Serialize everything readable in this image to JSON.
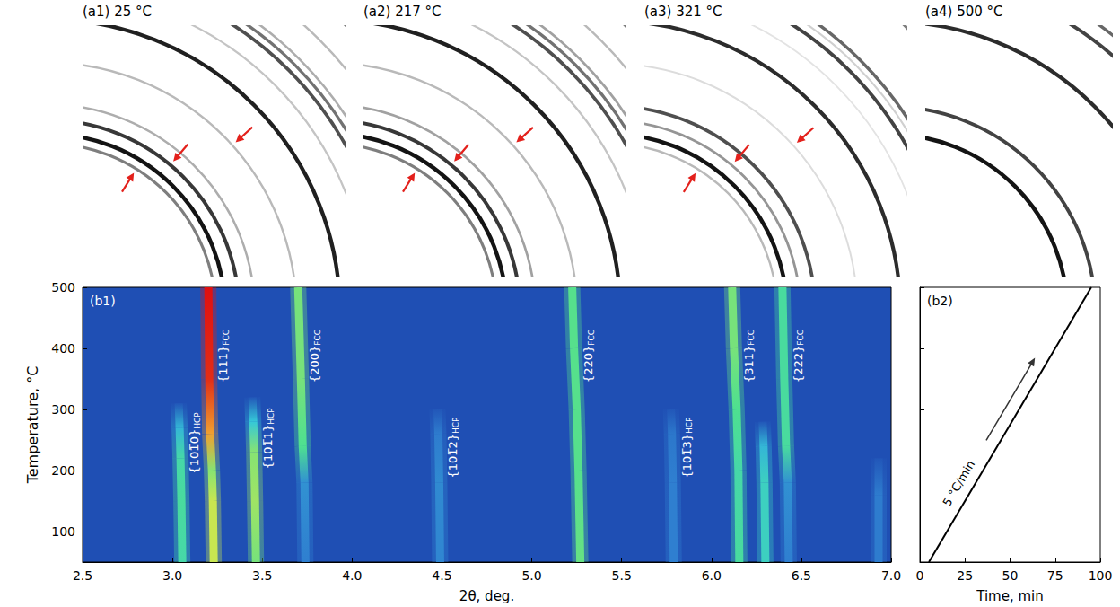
{
  "images": [
    {
      "title": "(a1) 25 °C",
      "rings": [
        {
          "two_theta": 3.04,
          "intensity": 0.55
        },
        {
          "two_theta": 3.21,
          "intensity": 1.0
        },
        {
          "two_theta": 3.46,
          "intensity": 0.85
        },
        {
          "two_theta": 3.74,
          "intensity": 0.35
        },
        {
          "two_theta": 4.49,
          "intensity": 0.3
        },
        {
          "two_theta": 5.27,
          "intensity": 0.95
        },
        {
          "two_theta": 5.79,
          "intensity": 0.25
        },
        {
          "two_theta": 6.155,
          "intensity": 0.75
        },
        {
          "two_theta": 6.3,
          "intensity": 0.6
        },
        {
          "two_theta": 6.43,
          "intensity": 0.35
        },
        {
          "two_theta": 6.93,
          "intensity": 0.3
        },
        {
          "two_theta": 7.45,
          "intensity": 0.55
        }
      ],
      "arrows": [
        3.04,
        3.46,
        4.49
      ]
    },
    {
      "title": "(a2) 217 °C",
      "rings": [
        {
          "two_theta": 3.04,
          "intensity": 0.55
        },
        {
          "two_theta": 3.22,
          "intensity": 1.0
        },
        {
          "two_theta": 3.46,
          "intensity": 0.85
        },
        {
          "two_theta": 3.735,
          "intensity": 0.4
        },
        {
          "two_theta": 4.485,
          "intensity": 0.3
        },
        {
          "two_theta": 5.26,
          "intensity": 0.95
        },
        {
          "two_theta": 5.785,
          "intensity": 0.25
        },
        {
          "two_theta": 6.15,
          "intensity": 0.75
        },
        {
          "two_theta": 6.295,
          "intensity": 0.6
        },
        {
          "two_theta": 6.425,
          "intensity": 0.4
        },
        {
          "two_theta": 6.93,
          "intensity": 0.3
        },
        {
          "two_theta": 7.43,
          "intensity": 0.55
        }
      ],
      "arrows": [
        3.04,
        3.46,
        4.485
      ]
    },
    {
      "title": "(a3) 321 °C",
      "rings": [
        {
          "two_theta": 3.035,
          "intensity": 0.3
        },
        {
          "two_theta": 3.21,
          "intensity": 1.0
        },
        {
          "two_theta": 3.45,
          "intensity": 0.45
        },
        {
          "two_theta": 3.715,
          "intensity": 0.75
        },
        {
          "two_theta": 4.475,
          "intensity": 0.15
        },
        {
          "two_theta": 5.245,
          "intensity": 0.9
        },
        {
          "two_theta": 5.775,
          "intensity": 0.12
        },
        {
          "two_theta": 6.135,
          "intensity": 0.8
        },
        {
          "two_theta": 6.285,
          "intensity": 0.2
        },
        {
          "two_theta": 6.405,
          "intensity": 0.65
        },
        {
          "two_theta": 7.41,
          "intensity": 0.55
        }
      ],
      "arrows": [
        3.035,
        3.45,
        4.475
      ]
    },
    {
      "title": "(a4) 500 °C",
      "rings": [
        {
          "two_theta": 3.2,
          "intensity": 1.0
        },
        {
          "two_theta": 3.7,
          "intensity": 0.8
        },
        {
          "two_theta": 5.225,
          "intensity": 0.9
        },
        {
          "two_theta": 6.115,
          "intensity": 0.8
        },
        {
          "two_theta": 6.395,
          "intensity": 0.65
        },
        {
          "two_theta": 7.39,
          "intensity": 0.55
        }
      ],
      "arrows": []
    }
  ],
  "chart_data": [
    {
      "type": "heatmap",
      "panel": "(b1)",
      "xlabel": "2θ, deg.",
      "ylabel": "Temperature, °C",
      "xlim": [
        2.5,
        7.0
      ],
      "ylim": [
        50,
        500
      ],
      "xticks": [
        2.5,
        {
          "value": 3,
          "label": "3.0"
        },
        3.5,
        {
          "value": 4,
          "label": "4.0"
        },
        4.5,
        {
          "value": 5,
          "label": "5.0"
        },
        5.5,
        {
          "value": 6,
          "label": "6.0"
        },
        6.5,
        {
          "value": 7,
          "label": "7.0"
        }
      ],
      "yticks": [
        100,
        200,
        300,
        400,
        500
      ],
      "intensity_range": [
        0,
        1
      ],
      "grid": false,
      "series": [
        {
          "name": "{101̅0}",
          "phase": "HCP",
          "values": [
            [
              3.055,
              50
            ],
            [
              3.05,
              150
            ],
            [
              3.045,
              220
            ],
            [
              3.04,
              270
            ],
            [
              3.035,
              310
            ]
          ],
          "intensity": [
            0.6,
            0.62,
            0.6,
            0.45,
            0.05
          ]
        },
        {
          "name": "{111}",
          "phase": "FCC",
          "values": [
            [
              3.23,
              50
            ],
            [
              3.225,
              150
            ],
            [
              3.22,
              200
            ],
            [
              3.21,
              260
            ],
            [
              3.205,
              350
            ],
            [
              3.2,
              500
            ]
          ],
          "intensity": [
            0.8,
            0.8,
            0.72,
            0.9,
            0.98,
            1.0
          ]
        },
        {
          "name": "{101̅1}",
          "phase": "HCP",
          "values": [
            [
              3.465,
              50
            ],
            [
              3.46,
              150
            ],
            [
              3.455,
              230
            ],
            [
              3.45,
              280
            ],
            [
              3.445,
              320
            ]
          ],
          "intensity": [
            0.7,
            0.75,
            0.72,
            0.5,
            0.05
          ]
        },
        {
          "name": "{200}",
          "phase": "FCC",
          "values": [
            [
              3.74,
              50
            ],
            [
              3.735,
              180
            ],
            [
              3.725,
              240
            ],
            [
              3.715,
              350
            ],
            [
              3.7,
              500
            ]
          ],
          "intensity": [
            0.3,
            0.35,
            0.65,
            0.7,
            0.7
          ]
        },
        {
          "name": "{101̅2}",
          "phase": "HCP",
          "values": [
            [
              4.49,
              50
            ],
            [
              4.485,
              180
            ],
            [
              4.48,
              260
            ],
            [
              4.475,
              300
            ]
          ],
          "intensity": [
            0.32,
            0.33,
            0.28,
            0.05
          ]
        },
        {
          "name": "{220}",
          "phase": "FCC",
          "values": [
            [
              5.27,
              50
            ],
            [
              5.26,
              200
            ],
            [
              5.25,
              300
            ],
            [
              5.235,
              400
            ],
            [
              5.225,
              500
            ]
          ],
          "intensity": [
            0.68,
            0.66,
            0.66,
            0.66,
            0.66
          ]
        },
        {
          "name": "{101̅3}",
          "phase": "HCP",
          "values": [
            [
              5.79,
              50
            ],
            [
              5.785,
              180
            ],
            [
              5.78,
              260
            ],
            [
              5.775,
              300
            ]
          ],
          "intensity": [
            0.3,
            0.3,
            0.25,
            0.05
          ]
        },
        {
          "name": "{311}",
          "phase": "FCC",
          "values": [
            [
              6.155,
              50
            ],
            [
              6.15,
              200
            ],
            [
              6.14,
              300
            ],
            [
              6.125,
              400
            ],
            [
              6.115,
              500
            ]
          ],
          "intensity": [
            0.62,
            0.6,
            0.65,
            0.7,
            0.7
          ]
        },
        {
          "values": [
            [
              6.3,
              50
            ],
            [
              6.295,
              180
            ],
            [
              6.29,
              240
            ],
            [
              6.285,
              280
            ]
          ],
          "intensity": [
            0.55,
            0.55,
            0.45,
            0.05
          ]
        },
        {
          "name": "{222}",
          "phase": "FCC",
          "values": [
            [
              6.43,
              50
            ],
            [
              6.425,
              180
            ],
            [
              6.415,
              240
            ],
            [
              6.405,
              350
            ],
            [
              6.395,
              500
            ]
          ],
          "intensity": [
            0.3,
            0.35,
            0.62,
            0.62,
            0.62
          ]
        },
        {
          "values": [
            [
              6.93,
              50
            ],
            [
              6.93,
              160
            ],
            [
              6.93,
              220
            ]
          ],
          "intensity": [
            0.28,
            0.28,
            0.05
          ]
        }
      ]
    },
    {
      "type": "line",
      "panel": "(b2)",
      "xlabel": "Time, min",
      "xlim": [
        0,
        100
      ],
      "ylim": [
        50,
        500
      ],
      "xticks": [
        0,
        25,
        50,
        75,
        100
      ],
      "yticks": [
        100,
        200,
        300,
        400,
        500
      ],
      "tick_labels": "x",
      "grid": false,
      "color": "#000000",
      "x": [
        5,
        95
      ],
      "values": [
        50,
        500
      ],
      "annotation": "5 °C/min"
    }
  ]
}
